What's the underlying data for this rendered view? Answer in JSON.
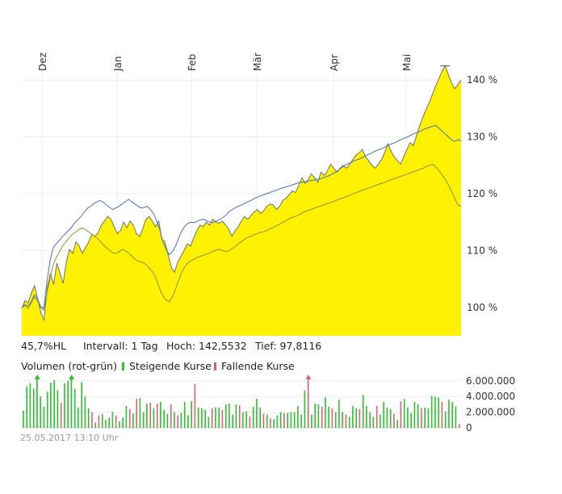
{
  "info_bar": {
    "range": "45,7%HL",
    "interval": "Intervall: 1 Tag",
    "high": "Hoch: 142,5532",
    "low": "Tief: 97,8116"
  },
  "volume_legend": {
    "title": "Volumen (rot-grün)",
    "rising": "Steigende Kurse",
    "falling": "Fallende Kurse"
  },
  "timestamp": "25.05.2017 13:10 Uhr",
  "colors": {
    "area_fill": "#fff200",
    "main_line": "#707070",
    "compare_blue": "#4a73b8",
    "compare_olive": "#8f8f3a",
    "rising": "#2fbf2f",
    "falling": "#d9607a",
    "grid": "#ececec"
  },
  "chart_data": [
    {
      "type": "area",
      "x_labels": [
        "Dez",
        "Jan",
        "Feb",
        "Mär",
        "Apr",
        "Mai"
      ],
      "y_ticks": [
        "100 %",
        "110 %",
        "120 %",
        "130 %",
        "140 %"
      ],
      "ylim": [
        95,
        145
      ],
      "grid": true,
      "series": [
        {
          "style": "area",
          "color": "#fff200",
          "values": [
            99.8,
            101.2,
            100.8,
            102.5,
            103.8,
            101.5,
            99,
            97.8,
            103.5,
            106,
            104,
            107.8,
            106,
            104.2,
            108,
            110.2,
            109.5,
            111.5,
            110.8,
            109.5,
            110.5,
            111.5,
            112.8,
            112.5,
            113.2,
            114.5,
            115.2,
            116,
            115.5,
            114.2,
            113,
            113.5,
            115,
            114,
            115.2,
            114.5,
            113,
            112.5,
            113.8,
            115.5,
            116,
            115.2,
            114.2,
            115.2,
            112,
            111.5,
            109.2,
            107,
            106.2,
            108,
            109,
            110,
            111.2,
            110.8,
            112.2,
            113.5,
            114.5,
            114.2,
            115,
            114.5,
            115.5,
            115,
            114.8,
            115.2,
            114.5,
            113.8,
            112.5,
            113.5,
            114.2,
            115.2,
            116,
            115.5,
            116.2,
            116.8,
            117.2,
            116.5,
            117,
            117.8,
            118.2,
            118,
            117.2,
            117.8,
            118.8,
            119.2,
            119.8,
            120.5,
            120.2,
            121.5,
            122.8,
            121.8,
            122.5,
            123.5,
            122.8,
            122,
            123.8,
            123.2,
            124,
            125.2,
            124.5,
            123.8,
            124.5,
            125,
            124.5,
            125.2,
            126,
            126.8,
            127.2,
            127.8,
            126.5,
            125.8,
            125,
            124.5,
            125.2,
            126,
            127.2,
            128.8,
            127.5,
            126.5,
            125.8,
            125.2,
            126.5,
            127.8,
            129,
            128.5,
            130.2,
            132,
            133.5,
            134.8,
            136,
            137.5,
            139,
            140.2,
            141.5,
            142.5,
            141,
            139.5,
            138.5,
            139.2,
            140
          ]
        },
        {
          "style": "line",
          "color": "#4a73b8",
          "values": [
            100,
            100.5,
            100.2,
            101,
            102.2,
            101.5,
            100.2,
            99.8,
            104.5,
            108.2,
            110.5,
            111.2,
            111.8,
            112.5,
            113,
            113.6,
            114.2,
            115,
            115.5,
            116.1,
            116.8,
            117.5,
            117.8,
            118.3,
            118.6,
            118.8,
            118.5,
            118,
            117.6,
            117.2,
            117.5,
            117.8,
            118.2,
            118.6,
            119,
            118.6,
            118.2,
            117.8,
            117.5,
            117.6,
            117.8,
            117.2,
            116.5,
            115.2,
            113.6,
            111.5,
            110.2,
            109.3,
            109.8,
            110.8,
            112.2,
            113.5,
            114.3,
            114.8,
            115,
            114.9,
            115.2,
            115.4,
            115.5,
            115.2,
            115,
            114.9,
            115.2,
            115.5,
            115.8,
            116.2,
            116.8,
            117.2,
            117.5,
            117.8,
            118,
            118.3,
            118.6,
            118.8,
            119.1,
            119.4,
            119.6,
            119.8,
            120,
            120.2,
            120.4,
            120.6,
            120.8,
            121,
            121.2,
            121.3,
            121.5,
            121.7,
            121.9,
            122,
            122.1,
            122.2,
            122.3,
            122.4,
            122.5,
            122.6,
            122.8,
            123,
            123.2,
            123.5,
            123.8,
            124.2,
            124.6,
            125,
            125.3,
            125.5,
            125.8,
            126,
            126.2,
            126.5,
            126.8,
            127,
            127.3,
            127.6,
            127.8,
            128,
            128.3,
            128.6,
            128.8,
            129,
            129.3,
            129.6,
            129.8,
            130,
            130.3,
            130.6,
            130.8,
            131,
            131.3,
            131.5,
            131.7,
            131.9,
            132,
            131.5,
            131,
            130.5,
            130,
            129.5,
            129.2,
            129.5,
            129.3
          ]
        },
        {
          "style": "line",
          "color": "#8f8f3a",
          "values": [
            100,
            100.3,
            99.8,
            100.8,
            101.8,
            101.2,
            100,
            99.5,
            102.5,
            105.2,
            107.5,
            108.8,
            109.8,
            110.8,
            111.5,
            112.2,
            112.8,
            113.2,
            113.6,
            114,
            113.8,
            113.4,
            113,
            112.6,
            112.2,
            111.6,
            111,
            110.5,
            110,
            109.6,
            109.5,
            109.8,
            110.2,
            110,
            109.6,
            109,
            108.5,
            108.2,
            108,
            107.8,
            107.3,
            106.7,
            106,
            104.8,
            103.2,
            102,
            101.3,
            101,
            101.8,
            103.2,
            104.8,
            106.2,
            107.2,
            107.8,
            108.2,
            108.5,
            108.8,
            109,
            109.2,
            109.4,
            109.6,
            109.9,
            110.1,
            110.2,
            110,
            109.8,
            110,
            110.3,
            110.7,
            111.2,
            111.6,
            112,
            112.3,
            112.5,
            112.8,
            113,
            113.2,
            113.3,
            113.5,
            113.8,
            114,
            114.3,
            114.6,
            114.9,
            115.2,
            115.5,
            115.8,
            116,
            116.2,
            116.5,
            116.8,
            117,
            117.2,
            117.4,
            117.6,
            117.8,
            118,
            118.2,
            118.4,
            118.6,
            118.8,
            119,
            119.2,
            119.4,
            119.6,
            119.9,
            120.1,
            120.3,
            120.5,
            120.7,
            120.9,
            121.1,
            121.3,
            121.5,
            121.7,
            121.9,
            122.1,
            122.3,
            122.5,
            122.7,
            122.9,
            123.1,
            123.3,
            123.5,
            123.7,
            123.9,
            124.1,
            124.3,
            124.5,
            124.8,
            125,
            125.2,
            124.7,
            124,
            123.3,
            122.5,
            121.5,
            120.4,
            119.2,
            118,
            117.8
          ]
        }
      ]
    },
    {
      "type": "bar",
      "y_ticks": [
        "0",
        "2.000.000",
        "4.000.000",
        "6.000.000"
      ],
      "ylim": [
        0,
        6500000
      ],
      "values": [
        2200000,
        5300000,
        5700000,
        5000000,
        6800000,
        4000000,
        2700000,
        4600000,
        5800000,
        6100000,
        4800000,
        3200000,
        5700000,
        6000000,
        6800000,
        5000000,
        2600000,
        5800000,
        4000000,
        2500000,
        2000000,
        700000,
        1600000,
        1800000,
        1000000,
        1300000,
        2000000,
        1600000,
        800000,
        1300000,
        2800000,
        2400000,
        1800000,
        3700000,
        3800000,
        2000000,
        3100000,
        3200000,
        2500000,
        3100000,
        3300000,
        2300000,
        1800000,
        3000000,
        2000000,
        1600000,
        1900000,
        3300000,
        1600000,
        3400000,
        5600000,
        2600000,
        2500000,
        2300000,
        1400000,
        2500000,
        2600000,
        2600000,
        2300000,
        3000000,
        3100000,
        1700000,
        3000000,
        2900000,
        2000000,
        2100000,
        1500000,
        2700000,
        3700000,
        2600000,
        1800000,
        1700000,
        1200000,
        1100000,
        1600000,
        2000000,
        1900000,
        1900000,
        2000000,
        2000000,
        2800000,
        1700000,
        4800000,
        6700000,
        1700000,
        3100000,
        3000000,
        2700000,
        3900000,
        2700000,
        2500000,
        2000000,
        3600000,
        2000000,
        1700000,
        1400000,
        2800000,
        2500000,
        2400000,
        4200000,
        2800000,
        2000000,
        1400000,
        2800000,
        1700000,
        3300000,
        2600000,
        2400000,
        1800000,
        1000000,
        3400000,
        3700000,
        2600000,
        1900000,
        3300000,
        3000000,
        2500000,
        2600000,
        2500000,
        4100000,
        4000000,
        3900000,
        3300000,
        2100000,
        3600000,
        3300000,
        2700000,
        500000
      ],
      "rising": [
        true,
        true,
        true,
        true,
        true,
        true,
        true,
        true,
        true,
        true,
        true,
        false,
        true,
        true,
        true,
        true,
        true,
        true,
        true,
        true,
        false,
        true,
        false,
        true,
        true,
        true,
        true,
        false,
        true,
        true,
        true,
        false,
        true,
        false,
        true,
        true,
        true,
        false,
        true,
        false,
        true,
        true,
        true,
        false,
        true,
        false,
        true,
        true,
        true,
        true,
        false,
        true,
        true,
        true,
        true,
        false,
        true,
        true,
        false,
        true,
        true,
        true,
        true,
        false,
        true,
        true,
        false,
        true,
        true,
        true,
        false,
        true,
        false,
        true,
        true,
        true,
        false,
        true,
        true,
        true,
        true,
        true,
        true,
        false,
        true,
        true,
        true,
        false,
        true,
        true,
        false,
        true,
        true,
        true,
        false,
        true,
        true,
        true,
        false,
        true,
        true,
        true,
        true,
        false,
        true,
        true,
        true,
        true,
        false,
        true,
        false,
        true,
        true,
        true,
        true,
        true,
        false,
        true,
        true,
        true,
        true,
        true,
        false,
        true,
        true,
        true,
        true,
        false
      ],
      "markers": [
        {
          "color": "#2fbf2f",
          "value": 6800000
        },
        {
          "color": "#2fbf2f",
          "value": 6800000
        },
        {
          "color": "#d9607a",
          "value": 6700000
        }
      ]
    }
  ]
}
